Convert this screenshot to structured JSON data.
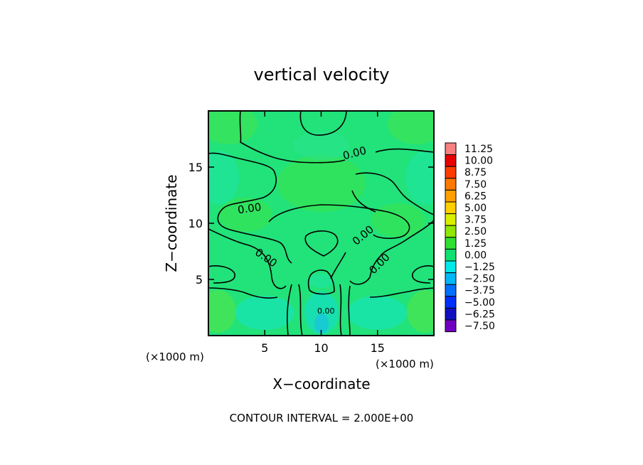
{
  "chart_data": {
    "type": "heatmap",
    "title": "vertical velocity",
    "xlabel": "X−coordinate",
    "ylabel": "Z−coordinate",
    "x_unit_left": "(×1000 m)",
    "x_unit_right": "(×1000 m)",
    "xlim": [
      0,
      20
    ],
    "ylim": [
      0,
      20
    ],
    "x_ticks": [
      5,
      10,
      15
    ],
    "y_ticks": [
      5,
      10,
      15
    ],
    "contour_labels": [
      "0.00",
      "0.00",
      "0.00",
      "0.00",
      "0.00",
      "0.00"
    ],
    "footer": "CONTOUR INTERVAL = 2.000E+00",
    "colorbar": {
      "levels": [
        "11.25",
        "10.00",
        "8.75",
        "7.50",
        "6.25",
        "5.00",
        "3.75",
        "2.50",
        "1.25",
        "0.00",
        "−1.25",
        "−2.50",
        "−3.75",
        "−5.00",
        "−6.25",
        "−7.50"
      ],
      "colors": [
        "#f88080",
        "#e80000",
        "#ff3c00",
        "#ff7800",
        "#ffa000",
        "#ffd000",
        "#d8f000",
        "#90e800",
        "#30e030",
        "#10e070",
        "#00e8e8",
        "#00b8f8",
        "#0070ff",
        "#0030ff",
        "#1010c0",
        "#7000c0"
      ]
    }
  }
}
